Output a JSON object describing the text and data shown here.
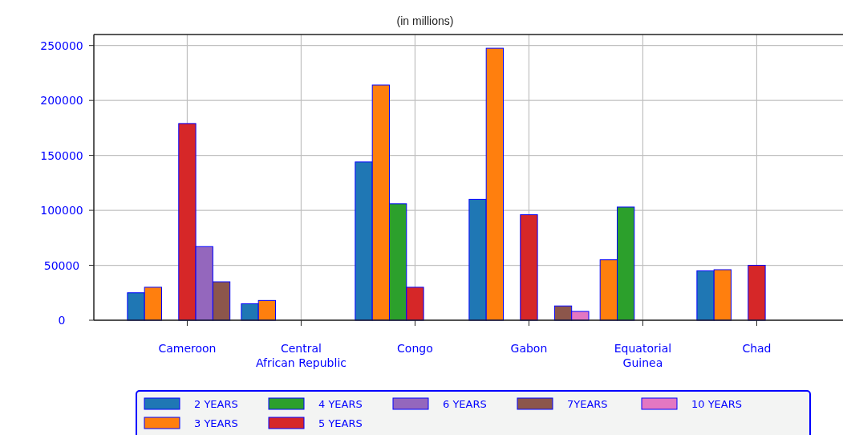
{
  "chart_data": {
    "type": "bar",
    "subtitle": "(in millions)",
    "categories": [
      "Cameroon",
      "Central\nAfrican Republic",
      "Congo",
      "Gabon",
      "Equatorial\nGuinea",
      "Chad"
    ],
    "series": [
      {
        "name": "2  YEARS",
        "color": "#1f77b4",
        "values": [
          25000,
          15000,
          144000,
          110000,
          null,
          45000
        ]
      },
      {
        "name": "3  YEARS",
        "color": "#ff7f0e",
        "values": [
          30000,
          18000,
          214000,
          247500,
          55000,
          46000
        ]
      },
      {
        "name": "4  YEARS",
        "color": "#2ca02c",
        "values": [
          null,
          null,
          106000,
          null,
          103000,
          null
        ]
      },
      {
        "name": "5  YEARS",
        "color": "#d62728",
        "values": [
          179000,
          null,
          30000,
          96000,
          null,
          50000
        ]
      },
      {
        "name": "6 YEARS",
        "color": "#9467bd",
        "values": [
          67000,
          null,
          null,
          null,
          null,
          null
        ]
      },
      {
        "name": "7YEARS",
        "color": "#8c564b",
        "values": [
          35000,
          null,
          null,
          13000,
          null,
          null
        ]
      },
      {
        "name": "10 YEARS",
        "color": "#e377c2",
        "values": [
          null,
          null,
          null,
          8000,
          null,
          null
        ]
      }
    ],
    "ylim": [
      0,
      260000
    ],
    "yticks": [
      0,
      50000,
      100000,
      150000,
      200000,
      250000
    ],
    "grid": true,
    "legend": "bottom"
  }
}
